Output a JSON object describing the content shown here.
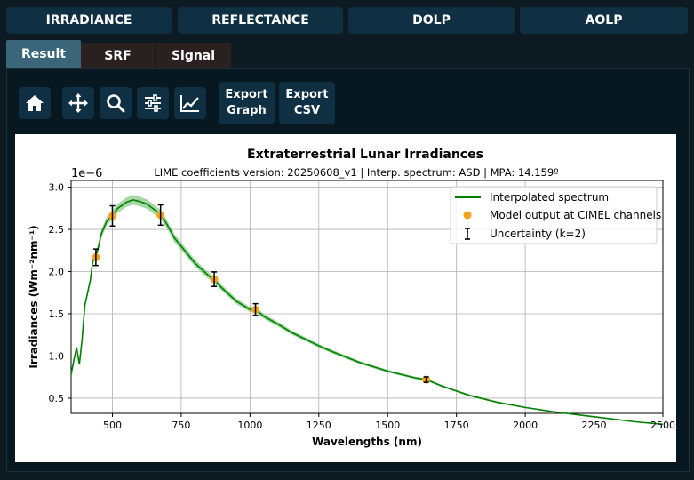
{
  "top_nav": [
    "IRRADIANCE",
    "REFLECTANCE",
    "DOLP",
    "AOLP"
  ],
  "tabs": [
    "Result",
    "SRF",
    "Signal"
  ],
  "active_tab": "Result",
  "toolbar": {
    "icons": [
      "home-icon",
      "pan-icon",
      "zoom-icon",
      "configure-icon",
      "edit-curve-icon"
    ],
    "export_graph": [
      "Export",
      "Graph"
    ],
    "export_csv": [
      "Export",
      "CSV"
    ]
  },
  "colors": {
    "button_bg": "#0f2f42",
    "active_tab": "#3b6679",
    "inactive_tab": "#2a2020",
    "background": "#0d1a22",
    "spectrum": "#008000",
    "points": "#f5a31a"
  },
  "chart_data": {
    "type": "line",
    "title": "Extraterrestrial Lunar Irradiances",
    "subtitle": "LIME coefficients version: 20250608_v1 | Interp. spectrum: ASD | MPA: 14.159º",
    "xlabel": "Wavelengths (nm)",
    "ylabel": "Irradiances (Wm⁻²nm⁻¹)",
    "y_multiplier": "1e−6",
    "xlim": [
      350,
      2500
    ],
    "ylim": [
      0.32,
      3.08
    ],
    "x_ticks": [
      500,
      750,
      1000,
      1250,
      1500,
      1750,
      2000,
      2250,
      2500
    ],
    "y_ticks": [
      0.5,
      1.0,
      1.5,
      2.0,
      2.5,
      3.0
    ],
    "grid": true,
    "legend_position": "top-right",
    "legend": [
      "Interpolated spectrum",
      "Model output at CIMEL channels",
      "Uncertainty (k=2)"
    ],
    "series": [
      {
        "name": "Interpolated spectrum",
        "x": [
          350,
          360,
          370,
          380,
          390,
          400,
          410,
          420,
          430,
          440,
          450,
          460,
          480,
          500,
          520,
          550,
          575,
          600,
          625,
          650,
          675,
          700,
          725,
          750,
          800,
          850,
          870,
          900,
          950,
          1000,
          1020,
          1050,
          1100,
          1150,
          1200,
          1250,
          1300,
          1400,
          1500,
          1600,
          1640,
          1700,
          1800,
          1900,
          2000,
          2100,
          2200,
          2300,
          2400,
          2500
        ],
        "y": [
          0.78,
          0.95,
          1.1,
          0.9,
          1.2,
          1.6,
          1.75,
          1.9,
          2.15,
          2.18,
          2.3,
          2.45,
          2.6,
          2.67,
          2.75,
          2.82,
          2.85,
          2.83,
          2.8,
          2.74,
          2.68,
          2.55,
          2.4,
          2.3,
          2.1,
          1.95,
          1.9,
          1.8,
          1.65,
          1.55,
          1.55,
          1.47,
          1.38,
          1.28,
          1.2,
          1.12,
          1.05,
          0.92,
          0.82,
          0.74,
          0.72,
          0.64,
          0.53,
          0.45,
          0.39,
          0.34,
          0.3,
          0.26,
          0.22,
          0.19
        ]
      },
      {
        "name": "Model output at CIMEL channels",
        "x": [
          440,
          500,
          675,
          870,
          1020,
          1640
        ],
        "y": [
          2.17,
          2.66,
          2.67,
          1.91,
          1.55,
          0.72
        ]
      }
    ]
  }
}
